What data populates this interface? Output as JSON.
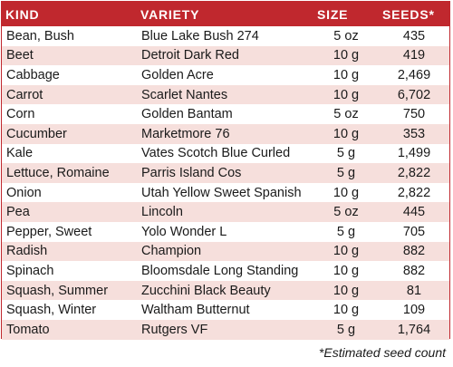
{
  "headers": {
    "kind": "KIND",
    "variety": "VARIETY",
    "size": "SIZE",
    "seeds": "SEEDS*"
  },
  "rows": [
    {
      "kind": "Bean, Bush",
      "variety": "Blue Lake Bush 274",
      "size": "5 oz",
      "seeds": "435"
    },
    {
      "kind": "Beet",
      "variety": "Detroit Dark Red",
      "size": "10 g",
      "seeds": "419"
    },
    {
      "kind": "Cabbage",
      "variety": "Golden Acre",
      "size": "10 g",
      "seeds": "2,469"
    },
    {
      "kind": "Carrot",
      "variety": "Scarlet Nantes",
      "size": "10 g",
      "seeds": "6,702"
    },
    {
      "kind": "Corn",
      "variety": "Golden Bantam",
      "size": "5 oz",
      "seeds": "750"
    },
    {
      "kind": "Cucumber",
      "variety": "Marketmore 76",
      "size": "10 g",
      "seeds": "353"
    },
    {
      "kind": "Kale",
      "variety": "Vates Scotch Blue Curled",
      "size": "5 g",
      "seeds": "1,499"
    },
    {
      "kind": "Lettuce, Romaine",
      "variety": "Parris Island Cos",
      "size": "5 g",
      "seeds": "2,822"
    },
    {
      "kind": "Onion",
      "variety": "Utah Yellow Sweet Spanish",
      "size": "10 g",
      "seeds": "2,822"
    },
    {
      "kind": "Pea",
      "variety": "Lincoln",
      "size": "5 oz",
      "seeds": "445"
    },
    {
      "kind": "Pepper, Sweet",
      "variety": "Yolo Wonder L",
      "size": "5 g",
      "seeds": "705"
    },
    {
      "kind": "Radish",
      "variety": "Champion",
      "size": "10 g",
      "seeds": "882"
    },
    {
      "kind": "Spinach",
      "variety": "Bloomsdale Long Standing",
      "size": "10 g",
      "seeds": "882"
    },
    {
      "kind": "Squash, Summer",
      "variety": "Zucchini Black Beauty",
      "size": "10 g",
      "seeds": "81"
    },
    {
      "kind": "Squash, Winter",
      "variety": "Waltham Butternut",
      "size": "10 g",
      "seeds": "109"
    },
    {
      "kind": "Tomato",
      "variety": "Rutgers VF",
      "size": "5 g",
      "seeds": "1,764"
    }
  ],
  "footnote": "*Estimated seed count",
  "colors": {
    "header_bg": "#c0282e",
    "stripe": "#f6dfdc",
    "header_text": "#ffffff"
  }
}
